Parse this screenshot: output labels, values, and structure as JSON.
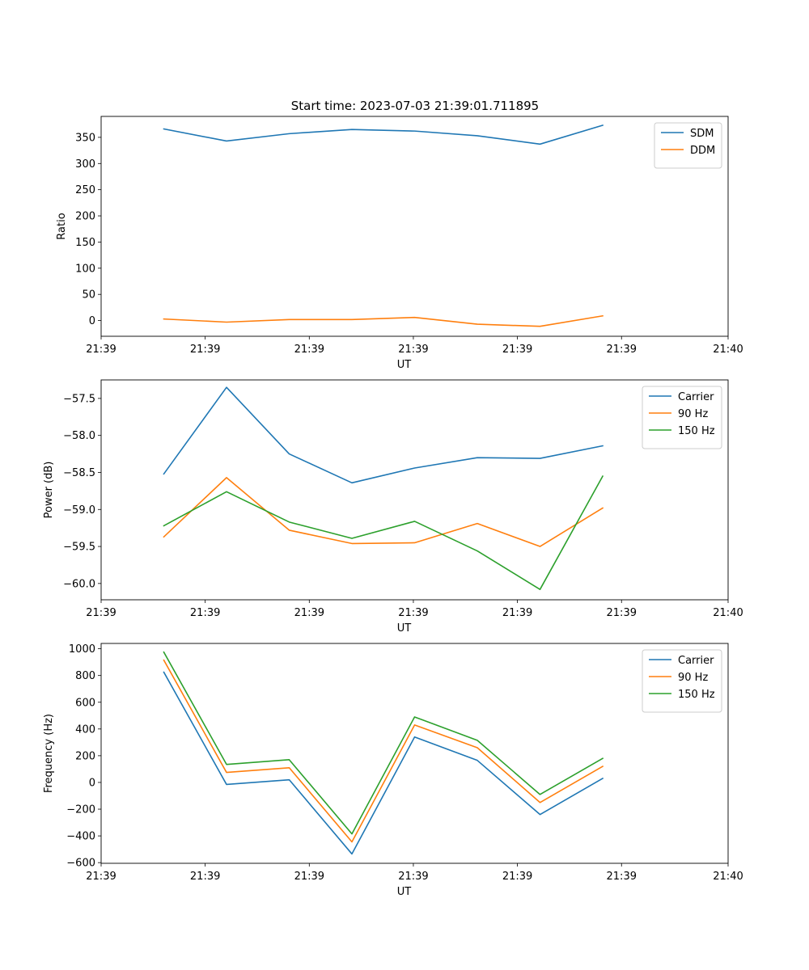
{
  "title": "Start time: 2023-07-03 21:39:01.711895",
  "colors": {
    "blue": "#1f77b4",
    "orange": "#ff7f0e",
    "green": "#2ca02c"
  },
  "chart_data": [
    {
      "type": "line",
      "xlabel": "UT",
      "ylabel": "Ratio",
      "legend_position": "top-right",
      "xlim": [
        0,
        10
      ],
      "x": [
        1,
        2,
        3,
        4,
        5,
        6,
        7,
        8
      ],
      "x_ticks": [
        0,
        1.66,
        3.32,
        4.98,
        6.64,
        8.3,
        10
      ],
      "x_tick_labels": [
        "21:39",
        "21:39",
        "21:39",
        "21:39",
        "21:39",
        "21:39",
        "21:40"
      ],
      "ylim": [
        -30,
        390
      ],
      "y_ticks": [
        0,
        50,
        100,
        150,
        200,
        250,
        300,
        350
      ],
      "y_tick_labels": [
        "0",
        "50",
        "100",
        "150",
        "200",
        "250",
        "300",
        "350"
      ],
      "series": [
        {
          "name": "SDM",
          "color": "#1f77b4",
          "values": [
            366,
            343,
            357,
            365,
            362,
            353,
            337,
            373
          ]
        },
        {
          "name": "DDM",
          "color": "#ff7f0e",
          "values": [
            3,
            -3,
            2,
            2,
            6,
            -7,
            -11,
            9
          ]
        }
      ]
    },
    {
      "type": "line",
      "xlabel": "UT",
      "ylabel": "Power (dB)",
      "legend_position": "top-right",
      "xlim": [
        0,
        10
      ],
      "x": [
        1,
        2,
        3,
        4,
        5,
        6,
        7,
        8
      ],
      "x_ticks": [
        0,
        1.66,
        3.32,
        4.98,
        6.64,
        8.3,
        10
      ],
      "x_tick_labels": [
        "21:39",
        "21:39",
        "21:39",
        "21:39",
        "21:39",
        "21:39",
        "21:40"
      ],
      "ylim": [
        -60.22,
        -57.25
      ],
      "y_ticks": [
        -60.0,
        -59.5,
        -59.0,
        -58.5,
        -58.0,
        -57.5
      ],
      "y_tick_labels": [
        "−60.0",
        "−59.5",
        "−59.0",
        "−58.5",
        "−58.0",
        "−57.5"
      ],
      "series": [
        {
          "name": "Carrier",
          "color": "#1f77b4",
          "values": [
            -58.52,
            -57.35,
            -58.25,
            -58.64,
            -58.44,
            -58.3,
            -58.31,
            -58.14
          ]
        },
        {
          "name": "90 Hz",
          "color": "#ff7f0e",
          "values": [
            -59.37,
            -58.57,
            -59.28,
            -59.46,
            -59.45,
            -59.19,
            -59.5,
            -58.98
          ]
        },
        {
          "name": "150 Hz",
          "color": "#2ca02c",
          "values": [
            -59.22,
            -58.76,
            -59.17,
            -59.39,
            -59.16,
            -59.56,
            -60.08,
            -58.55
          ]
        }
      ]
    },
    {
      "type": "line",
      "xlabel": "UT",
      "ylabel": "Frequency (Hz)",
      "legend_position": "top-right",
      "xlim": [
        0,
        10
      ],
      "x": [
        1,
        2,
        3,
        4,
        5,
        6,
        7,
        8
      ],
      "x_ticks": [
        0,
        1.66,
        3.32,
        4.98,
        6.64,
        8.3,
        10
      ],
      "x_tick_labels": [
        "21:39",
        "21:39",
        "21:39",
        "21:39",
        "21:39",
        "21:39",
        "21:40"
      ],
      "ylim": [
        -605,
        1040
      ],
      "y_ticks": [
        -600,
        -400,
        -200,
        0,
        200,
        400,
        600,
        800,
        1000
      ],
      "y_tick_labels": [
        "−600",
        "−400",
        "−200",
        "0",
        "200",
        "400",
        "600",
        "800",
        "1000"
      ],
      "series": [
        {
          "name": "Carrier",
          "color": "#1f77b4",
          "values": [
            825,
            -15,
            20,
            -535,
            340,
            165,
            -240,
            30
          ]
        },
        {
          "name": "90 Hz",
          "color": "#ff7f0e",
          "values": [
            915,
            75,
            110,
            -445,
            430,
            260,
            -150,
            120
          ]
        },
        {
          "name": "150 Hz",
          "color": "#2ca02c",
          "values": [
            975,
            135,
            170,
            -385,
            490,
            315,
            -90,
            180
          ]
        }
      ]
    }
  ]
}
